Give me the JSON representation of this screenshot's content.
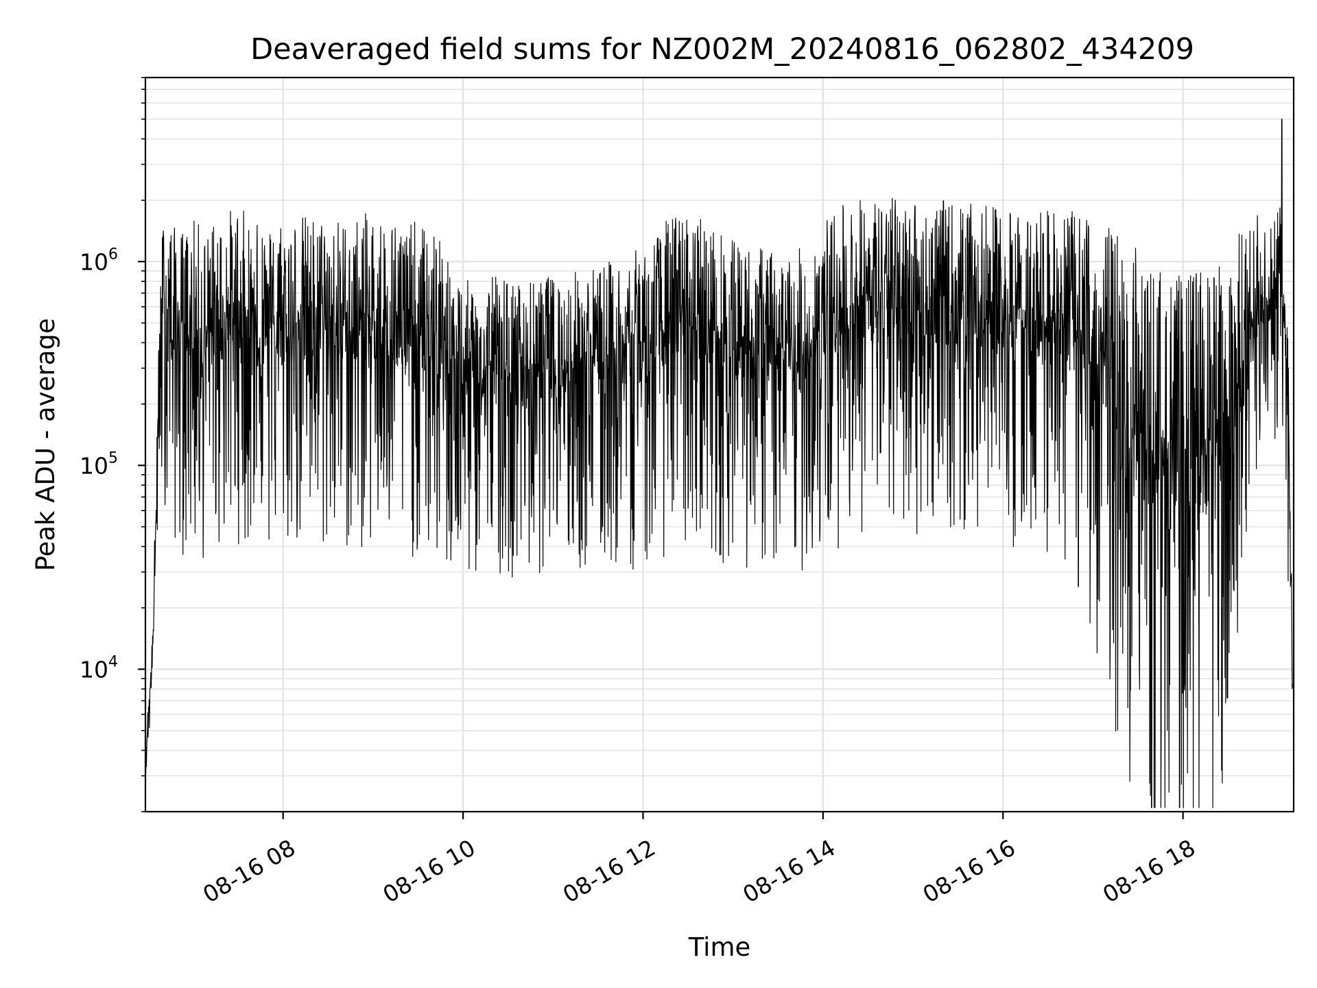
{
  "chart_data": {
    "type": "line",
    "title": "Deaveraged field sums for NZ002M_20240816_062802_434209",
    "xlabel": "Time",
    "ylabel": "Peak ADU - average",
    "yscale": "log",
    "ylim": [
      2000,
      8000000
    ],
    "xlim_hours": [
      6.47,
      19.23
    ],
    "grid": true,
    "line_color": "#000000",
    "x_ticks": [
      {
        "hour": 8,
        "label": "08-16 08"
      },
      {
        "hour": 10,
        "label": "08-16 10"
      },
      {
        "hour": 12,
        "label": "08-16 12"
      },
      {
        "hour": 14,
        "label": "08-16 14"
      },
      {
        "hour": 16,
        "label": "08-16 16"
      },
      {
        "hour": 18,
        "label": "08-16 18"
      }
    ],
    "y_ticks": [
      {
        "base": "10",
        "exp": "4",
        "value": 10000
      },
      {
        "base": "10",
        "exp": "5",
        "value": 100000
      },
      {
        "base": "10",
        "exp": "6",
        "value": 1000000
      }
    ],
    "series": [
      {
        "x": [
          "08-16 06:28",
          "08-16 06:30",
          "08-16 06:33",
          "08-16 06:36",
          "08-16 06:38",
          "08-16 06:40",
          "08-16 06:45",
          "08-16 06:50",
          "08-16 07:00",
          "08-16 07:10",
          "08-16 07:20",
          "08-16 07:30",
          "08-16 07:40",
          "08-16 07:50",
          "08-16 08:00",
          "08-16 08:20",
          "08-16 08:40",
          "08-16 09:00",
          "08-16 09:20",
          "08-16 09:40",
          "08-16 10:00",
          "08-16 10:20",
          "08-16 10:40",
          "08-16 11:00",
          "08-16 11:20",
          "08-16 11:40",
          "08-16 12:00",
          "08-16 12:20",
          "08-16 12:40",
          "08-16 13:00",
          "08-16 13:20",
          "08-16 13:40",
          "08-16 14:00",
          "08-16 14:20",
          "08-16 14:40",
          "08-16 15:00",
          "08-16 15:20",
          "08-16 15:40",
          "08-16 16:00",
          "08-16 16:20",
          "08-16 16:40",
          "08-16 17:00",
          "08-16 17:20",
          "08-16 17:40",
          "08-16 18:00",
          "08-16 18:20",
          "08-16 18:40",
          "08-16 18:50",
          "08-16 19:00",
          "08-16 19:05",
          "08-16 19:10",
          "08-16 19:13"
        ],
        "y": [
          3000,
          6000,
          12000,
          100000,
          400000,
          700000,
          600000,
          500000,
          550000,
          500000,
          600000,
          650000,
          550000,
          520000,
          600000,
          580000,
          560000,
          600000,
          560000,
          500000,
          300000,
          330000,
          310000,
          330000,
          350000,
          380000,
          420000,
          600000,
          550000,
          450000,
          420000,
          380000,
          550000,
          700000,
          720000,
          700000,
          680000,
          650000,
          620000,
          600000,
          580000,
          450000,
          250000,
          150000,
          120000,
          150000,
          350000,
          700000,
          800000,
          900000,
          300000,
          10000
        ],
        "variability": [
          0.1,
          0.15,
          0.3,
          0.6,
          0.85,
          1.0,
          1.1,
          1.15,
          1.2,
          1.2,
          1.2,
          1.2,
          1.2,
          1.2,
          1.2,
          1.2,
          1.2,
          1.2,
          1.2,
          1.2,
          1.1,
          1.05,
          1.05,
          1.05,
          1.1,
          1.1,
          1.15,
          1.2,
          1.2,
          1.15,
          1.15,
          1.15,
          1.2,
          1.2,
          1.2,
          1.2,
          1.2,
          1.2,
          1.2,
          1.2,
          1.25,
          1.5,
          1.9,
          2.1,
          2.2,
          2.1,
          1.6,
          1.0,
          0.8,
          0.9,
          1.2,
          0.6
        ],
        "peak": {
          "x": "08-16 19:06",
          "y": 5000000
        }
      }
    ]
  }
}
